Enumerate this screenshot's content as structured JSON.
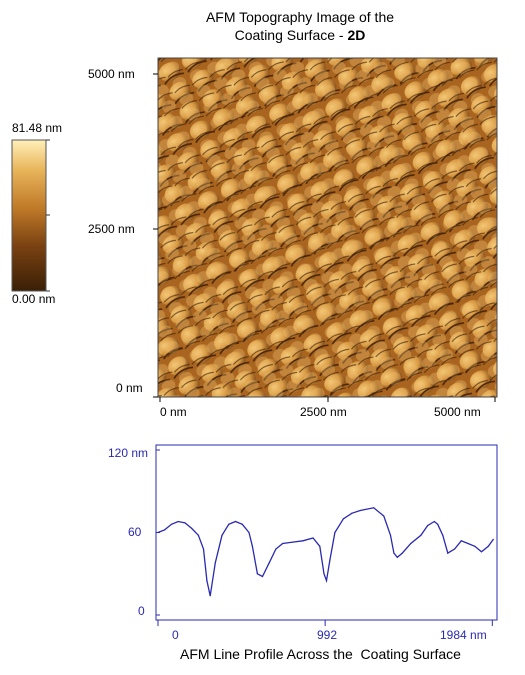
{
  "chart_data": [
    {
      "type": "heatmap",
      "title_line1": "AFM Topography Image of the",
      "title_line2_prefix": "Coating Surface - ",
      "title_line2_bold": "2D",
      "x_ticks": [
        "0 nm",
        "2500 nm",
        "5000 nm"
      ],
      "y_ticks": [
        "5000 nm",
        "2500 nm",
        "0 nm"
      ],
      "xlim": [
        0,
        5000
      ],
      "ylim": [
        0,
        5000
      ],
      "colorbar": {
        "max_label": "81.48 nm",
        "min_label": "0.00 nm",
        "range": [
          0,
          81.48
        ],
        "colors": [
          "#3a1f06",
          "#7a4212",
          "#c07a28",
          "#e8b45a",
          "#fff0b8"
        ]
      }
    },
    {
      "type": "line",
      "title": "AFM Line Profile Across the  Coating Surface",
      "x_ticks": [
        "0",
        "992",
        "1984 nm"
      ],
      "y_ticks": [
        "120 nm",
        "60",
        "0"
      ],
      "xlim": [
        0,
        2000
      ],
      "ylim": [
        0,
        120
      ],
      "line_color": "#2a2ab0",
      "x": [
        0,
        40,
        80,
        120,
        160,
        200,
        240,
        270,
        290,
        310,
        340,
        380,
        420,
        460,
        500,
        540,
        560,
        590,
        620,
        660,
        700,
        740,
        800,
        860,
        920,
        960,
        985,
        1000,
        1020,
        1050,
        1100,
        1150,
        1200,
        1280,
        1340,
        1380,
        1400,
        1420,
        1450,
        1500,
        1560,
        1600,
        1640,
        1660,
        1690,
        1720,
        1760,
        1800,
        1840,
        1880,
        1920,
        1960,
        1990
      ],
      "y": [
        60,
        62,
        66,
        68,
        67,
        63,
        58,
        48,
        25,
        14,
        38,
        58,
        66,
        68,
        66,
        60,
        50,
        30,
        28,
        38,
        48,
        52,
        53,
        54,
        56,
        50,
        30,
        25,
        40,
        60,
        70,
        74,
        76,
        78,
        72,
        58,
        45,
        42,
        45,
        52,
        58,
        65,
        68,
        66,
        58,
        45,
        48,
        54,
        52,
        50,
        46,
        50,
        55
      ]
    }
  ]
}
